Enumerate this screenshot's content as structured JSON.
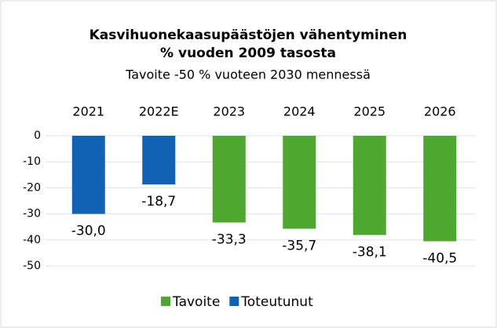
{
  "chart_data": {
    "type": "bar",
    "title": [
      "Kasvihuonekaasupäästöjen vähentyminen",
      "% vuoden 2009 tasosta"
    ],
    "subtitle": "Tavoite -50 % vuoteen 2030 mennessä",
    "categories": [
      "2021",
      "2022E",
      "2023",
      "2024",
      "2025",
      "2026"
    ],
    "series": [
      {
        "name": "Tavoite",
        "color": "#4ea72e",
        "values": [
          null,
          null,
          -33.3,
          -35.7,
          -38.1,
          -40.5
        ],
        "value_labels": [
          null,
          null,
          "-33,3",
          "-35,7",
          "-38,1",
          "-40,5"
        ]
      },
      {
        "name": "Toteutunut",
        "color": "#0f62b4",
        "values": [
          -30.0,
          -18.7,
          null,
          null,
          null,
          null
        ],
        "value_labels": [
          "-30,0",
          "-18,7",
          null,
          null,
          null,
          null
        ]
      }
    ],
    "ylim": [
      -50,
      0
    ],
    "yticks": [
      0,
      -10,
      -20,
      -30,
      -40,
      -50
    ],
    "grid": true,
    "legend": "bottom"
  }
}
